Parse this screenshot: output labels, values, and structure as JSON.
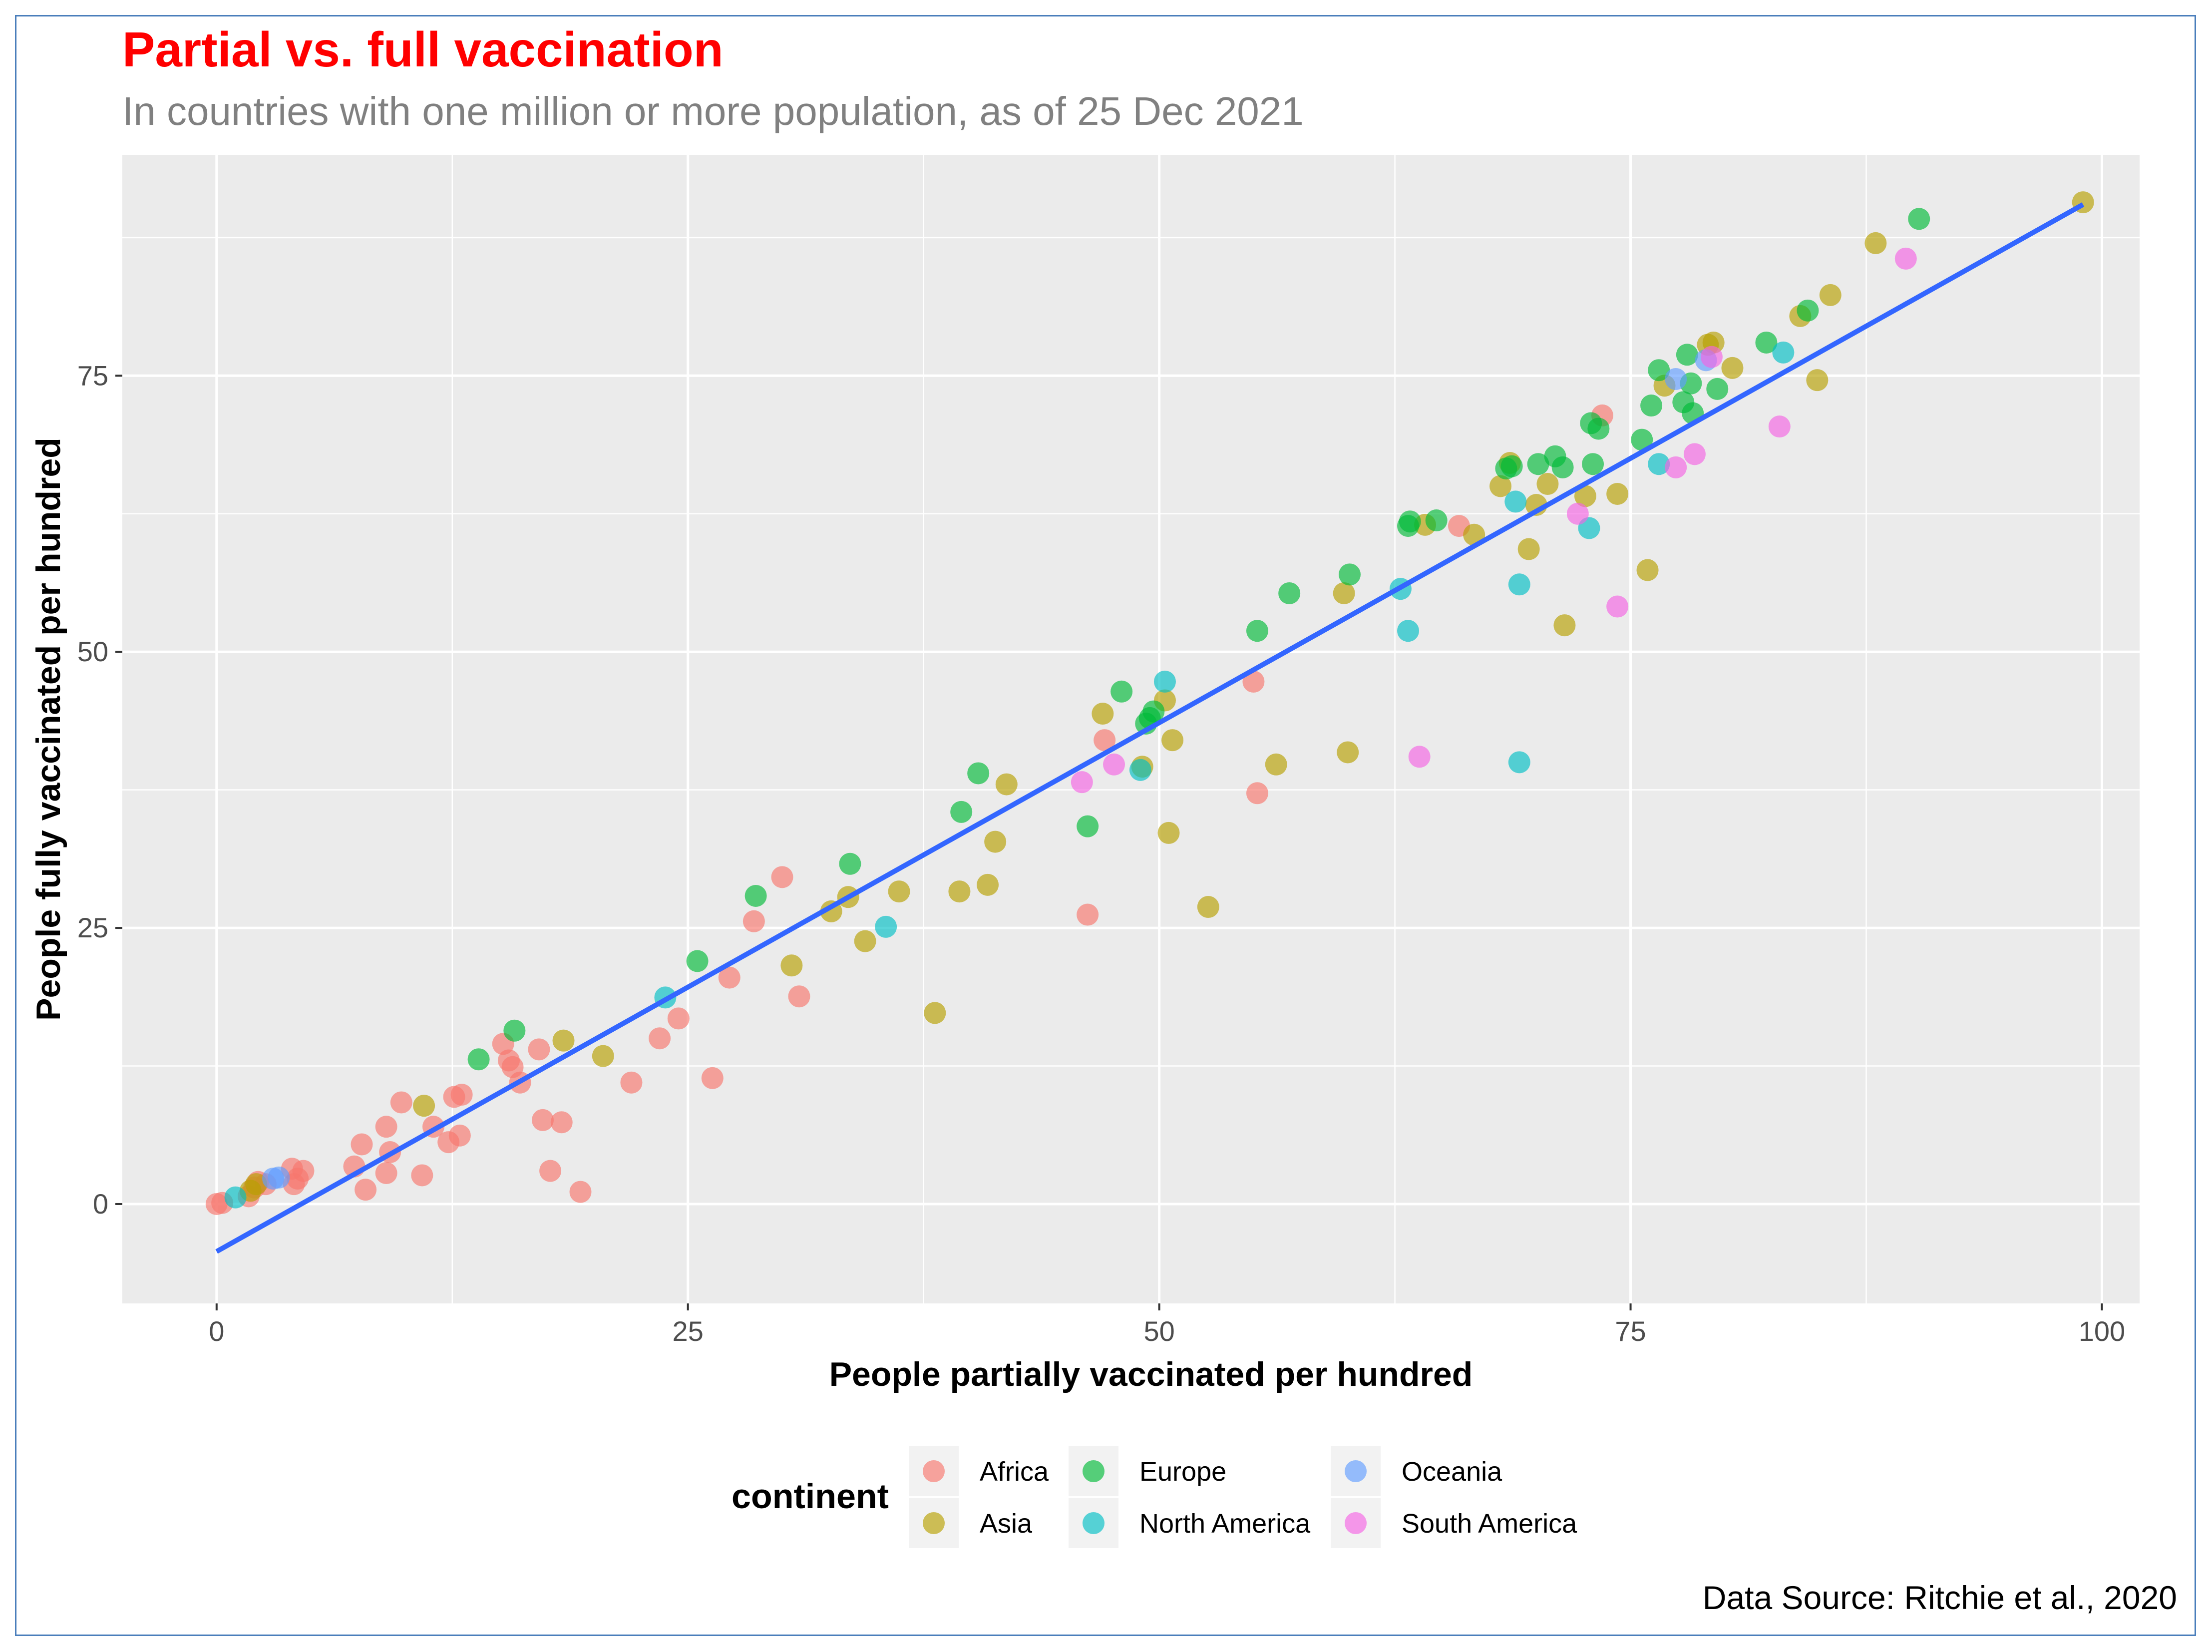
{
  "chart_data": {
    "type": "scatter",
    "title": "Partial vs. full vaccination",
    "subtitle": "In countries with one million or more population, as of 25 Dec 2021",
    "xlabel": "People partially vaccinated per hundred",
    "ylabel": "People fully vaccinated per hundred",
    "caption": "Data Source: Ritchie et al., 2020",
    "xlim": [
      -5,
      102
    ],
    "ylim": [
      -9,
      95
    ],
    "x_ticks": [
      0,
      25,
      50,
      75,
      100
    ],
    "y_ticks": [
      0,
      25,
      50,
      75
    ],
    "grid": true,
    "trend_line": {
      "x": [
        0,
        99
      ],
      "y": [
        -4.3,
        90.5
      ],
      "color": "#3366ff"
    },
    "legend": {
      "title": "continent",
      "position": "bottom",
      "entries": [
        {
          "name": "Africa",
          "color": "#F8766D"
        },
        {
          "name": "Asia",
          "color": "#B79F00"
        },
        {
          "name": "Europe",
          "color": "#00BA38"
        },
        {
          "name": "North America",
          "color": "#00BFC4"
        },
        {
          "name": "Oceania",
          "color": "#619CFF"
        },
        {
          "name": "South America",
          "color": "#F564E3"
        }
      ]
    },
    "series": [
      {
        "name": "Africa",
        "color": "#F8766D",
        "points": [
          [
            0,
            0
          ],
          [
            0.3,
            0.1
          ],
          [
            1.7,
            0.7
          ],
          [
            2,
            1.5
          ],
          [
            2.2,
            2
          ],
          [
            2.6,
            1.8
          ],
          [
            4,
            3.2
          ],
          [
            4.3,
            2.3
          ],
          [
            4.6,
            3
          ],
          [
            4.1,
            1.8
          ],
          [
            7.3,
            3.4
          ],
          [
            7.7,
            5.4
          ],
          [
            7.9,
            1.3
          ],
          [
            9,
            7
          ],
          [
            9.2,
            4.7
          ],
          [
            9,
            2.8
          ],
          [
            9.8,
            9.2
          ],
          [
            10.9,
            2.6
          ],
          [
            11.5,
            7
          ],
          [
            12.3,
            5.6
          ],
          [
            12.6,
            9.7
          ],
          [
            12.9,
            6.2
          ],
          [
            13,
            9.9
          ],
          [
            15.2,
            14.5
          ],
          [
            15.5,
            13
          ],
          [
            15.7,
            12.4
          ],
          [
            16.1,
            11
          ],
          [
            17.1,
            14
          ],
          [
            17.3,
            7.6
          ],
          [
            17.7,
            3
          ],
          [
            18.3,
            7.4
          ],
          [
            19.3,
            1.1
          ],
          [
            22,
            11
          ],
          [
            23.5,
            15
          ],
          [
            24.5,
            16.8
          ],
          [
            26.3,
            11.4
          ],
          [
            27.2,
            20.5
          ],
          [
            28.5,
            25.6
          ],
          [
            30,
            29.6
          ],
          [
            30.9,
            18.8
          ],
          [
            46.2,
            26.2
          ],
          [
            47.1,
            42
          ],
          [
            55,
            47.3
          ],
          [
            55.2,
            37.2
          ],
          [
            65.9,
            61.4
          ],
          [
            73.5,
            71.4
          ]
        ]
      },
      {
        "name": "Asia",
        "color": "#B79F00",
        "points": [
          [
            1.8,
            1.2
          ],
          [
            2.1,
            1.8
          ],
          [
            11,
            8.9
          ],
          [
            18.4,
            14.8
          ],
          [
            20.5,
            13.4
          ],
          [
            30.5,
            21.6
          ],
          [
            32.6,
            26.5
          ],
          [
            33.5,
            27.8
          ],
          [
            34.4,
            23.8
          ],
          [
            36.2,
            28.3
          ],
          [
            38.1,
            17.3
          ],
          [
            39.4,
            28.3
          ],
          [
            40.9,
            28.9
          ],
          [
            41.3,
            32.8
          ],
          [
            41.9,
            38
          ],
          [
            47,
            44.4
          ],
          [
            49.1,
            39.6
          ],
          [
            50.3,
            45.6
          ],
          [
            50.5,
            33.6
          ],
          [
            50.7,
            42
          ],
          [
            52.6,
            26.9
          ],
          [
            56.2,
            39.8
          ],
          [
            59.8,
            55.3
          ],
          [
            60,
            40.9
          ],
          [
            64.1,
            61.5
          ],
          [
            66.7,
            60.6
          ],
          [
            68.1,
            65
          ],
          [
            68.6,
            67.1
          ],
          [
            69.6,
            59.3
          ],
          [
            70,
            63.3
          ],
          [
            70.6,
            65.2
          ],
          [
            71.5,
            52.4
          ],
          [
            72.6,
            64.1
          ],
          [
            74.3,
            64.3
          ],
          [
            75.9,
            57.4
          ],
          [
            76.8,
            74.1
          ],
          [
            79.1,
            77.8
          ],
          [
            79.4,
            78
          ],
          [
            80.4,
            75.7
          ],
          [
            84,
            80.4
          ],
          [
            84.9,
            74.6
          ],
          [
            85.6,
            82.3
          ],
          [
            88,
            87
          ],
          [
            99,
            90.7
          ]
        ]
      },
      {
        "name": "Europe",
        "color": "#00BA38",
        "points": [
          [
            13.9,
            13.1
          ],
          [
            15.8,
            15.7
          ],
          [
            25.5,
            22
          ],
          [
            28.6,
            27.9
          ],
          [
            33.6,
            30.8
          ],
          [
            39.5,
            35.5
          ],
          [
            40.4,
            39
          ],
          [
            46.2,
            34.2
          ],
          [
            48,
            46.4
          ],
          [
            49.3,
            43.5
          ],
          [
            49.5,
            44
          ],
          [
            49.7,
            44.6
          ],
          [
            55.2,
            51.9
          ],
          [
            56.9,
            55.3
          ],
          [
            60.1,
            57
          ],
          [
            63.2,
            61.4
          ],
          [
            63.3,
            61.8
          ],
          [
            64.7,
            61.9
          ],
          [
            68.4,
            66.6
          ],
          [
            68.7,
            66.8
          ],
          [
            70.1,
            67
          ],
          [
            71,
            67.7
          ],
          [
            71.4,
            66.7
          ],
          [
            72.9,
            70.7
          ],
          [
            73,
            67
          ],
          [
            73.3,
            70.2
          ],
          [
            75.6,
            69.2
          ],
          [
            76.1,
            72.3
          ],
          [
            76.5,
            75.5
          ],
          [
            77.8,
            72.6
          ],
          [
            78,
            76.9
          ],
          [
            78.2,
            74.3
          ],
          [
            78.3,
            71.6
          ],
          [
            79.6,
            73.8
          ],
          [
            82.2,
            78
          ],
          [
            84.4,
            80.9
          ],
          [
            90.3,
            89.2
          ]
        ]
      },
      {
        "name": "North America",
        "color": "#00BFC4",
        "points": [
          [
            1,
            0.6
          ],
          [
            23.8,
            18.7
          ],
          [
            35.5,
            25.1
          ],
          [
            49,
            39.3
          ],
          [
            50.3,
            47.3
          ],
          [
            62.8,
            55.7
          ],
          [
            63.2,
            51.9
          ],
          [
            68.9,
            63.6
          ],
          [
            69.1,
            56.1
          ],
          [
            69.1,
            40
          ],
          [
            72.8,
            61.2
          ],
          [
            76.5,
            67
          ],
          [
            83.1,
            77.1
          ]
        ]
      },
      {
        "name": "Oceania",
        "color": "#619CFF",
        "points": [
          [
            3,
            2.3
          ],
          [
            3.3,
            2.4
          ],
          [
            77.4,
            74.7
          ],
          [
            79,
            76.4
          ]
        ]
      },
      {
        "name": "South America",
        "color": "#F564E3",
        "points": [
          [
            45.9,
            38.2
          ],
          [
            47.6,
            39.8
          ],
          [
            63.8,
            40.5
          ],
          [
            72.2,
            62.5
          ],
          [
            74.3,
            54.1
          ],
          [
            77.4,
            66.7
          ],
          [
            78.4,
            67.9
          ],
          [
            79.3,
            76.7
          ],
          [
            82.9,
            70.4
          ],
          [
            89.6,
            85.6
          ]
        ]
      }
    ]
  }
}
